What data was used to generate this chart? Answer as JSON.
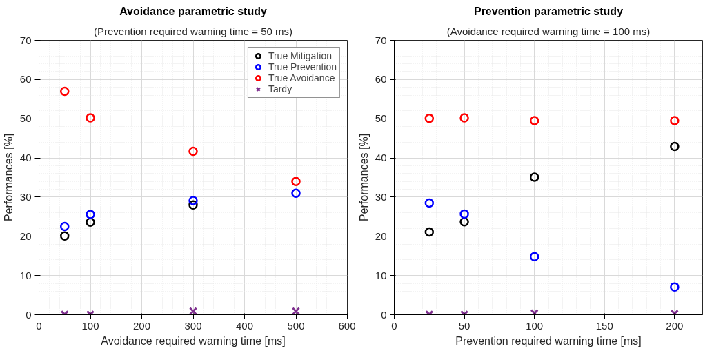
{
  "chart_data": [
    {
      "type": "scatter",
      "title": "Avoidance parametric study",
      "subtitle": "(Prevention required warning time = 50 ms)",
      "xlabel": "Avoidance required warning time [ms]",
      "ylabel": "Performances [%]",
      "x": [
        50,
        100,
        300,
        500
      ],
      "xlim": [
        0,
        600
      ],
      "xticks": [
        0,
        100,
        200,
        300,
        400,
        500,
        600
      ],
      "ylim": [
        0,
        70
      ],
      "yticks": [
        0,
        10,
        20,
        30,
        40,
        50,
        60,
        70
      ],
      "grid": true,
      "legend": "top right",
      "series": [
        {
          "name": "True Mitigation",
          "color": "#000000",
          "marker": "circle",
          "values": [
            20.1,
            23.6,
            28.0,
            null
          ]
        },
        {
          "name": "True Prevention",
          "color": "#0000ff",
          "marker": "circle",
          "values": [
            22.5,
            25.6,
            29.1,
            31.0
          ]
        },
        {
          "name": "True Avoidance",
          "color": "#ff0000",
          "marker": "circle",
          "values": [
            57.0,
            50.2,
            41.7,
            34.0
          ]
        },
        {
          "name": "Tardy",
          "color": "#7e2f8e",
          "marker": "cross",
          "values": [
            0.1,
            0.1,
            0.9,
            0.9
          ]
        }
      ]
    },
    {
      "type": "scatter",
      "title": "Prevention parametric study",
      "subtitle": "(Avoidance required warning time = 100 ms)",
      "xlabel": "Prevention required warning time [ms]",
      "ylabel": "Performances [%]",
      "x": [
        25,
        50,
        100,
        200
      ],
      "xlim": [
        0,
        220
      ],
      "xticks": [
        0,
        50,
        100,
        150,
        200
      ],
      "ylim": [
        0,
        70
      ],
      "yticks": [
        0,
        10,
        20,
        30,
        40,
        50,
        60,
        70
      ],
      "grid": true,
      "series": [
        {
          "color": "#000000",
          "marker": "circle",
          "values": [
            21.1,
            23.7,
            35.1,
            42.9
          ]
        },
        {
          "color": "#0000ff",
          "marker": "circle",
          "values": [
            28.5,
            25.7,
            14.8,
            7.1
          ]
        },
        {
          "color": "#ff0000",
          "marker": "circle",
          "values": [
            50.1,
            50.2,
            49.5,
            49.5
          ]
        },
        {
          "color": "#7e2f8e",
          "marker": "cross",
          "values": [
            0.1,
            0.1,
            0.4,
            0.3
          ]
        }
      ]
    }
  ]
}
